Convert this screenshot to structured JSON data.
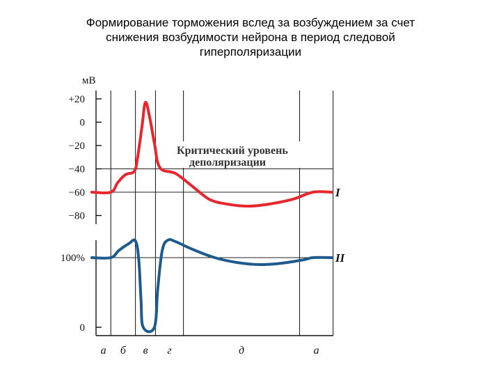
{
  "title_lines": [
    "Формирование торможения  вслед  за возбуждением  за счет",
    "снижения  возбудимости  нейрона в период  следовой",
    "гиперполяризации"
  ],
  "chart_data": [
    {
      "type": "line",
      "title": "",
      "ylabel": "мВ",
      "ylim": [
        -85,
        28
      ],
      "yticks": [
        20,
        0,
        -20,
        -40,
        -60,
        -80
      ],
      "ytick_labels": [
        "+20",
        "0",
        "−20",
        "−40",
        "−60",
        "−80"
      ],
      "annotation": [
        "Критический уровень",
        "деполяризации"
      ],
      "threshold": -40,
      "series": [
        {
          "name": "I",
          "color": "#e8262e",
          "points": [
            [
              0,
              -60
            ],
            [
              1.7,
              -60
            ],
            [
              2.3,
              -52
            ],
            [
              3.0,
              -45
            ],
            [
              3.8,
              -42
            ],
            [
              4.1,
              -30
            ],
            [
              4.5,
              -3
            ],
            [
              4.8,
              17
            ],
            [
              5.2,
              3
            ],
            [
              5.6,
              -18
            ],
            [
              6.1,
              -39
            ],
            [
              7.5,
              -44
            ],
            [
              9.0,
              -55
            ],
            [
              10.5,
              -66
            ],
            [
              12.0,
              -70
            ],
            [
              14.0,
              -72
            ],
            [
              16.0,
              -70
            ],
            [
              18.0,
              -66
            ],
            [
              19.8,
              -60
            ],
            [
              21.5,
              -60
            ]
          ]
        }
      ]
    },
    {
      "type": "line",
      "title": "",
      "ylabel": "",
      "ylim": [
        0,
        130
      ],
      "yticks": [
        100,
        0
      ],
      "ytick_labels": [
        "100%",
        "0"
      ],
      "series": [
        {
          "name": "II",
          "color": "#1e5b8c",
          "points": [
            [
              0,
              100
            ],
            [
              1.7,
              100
            ],
            [
              2.4,
              110
            ],
            [
              3.3,
              120
            ],
            [
              3.9,
              124
            ],
            [
              4.2,
              97
            ],
            [
              4.4,
              40
            ],
            [
              4.6,
              0
            ],
            [
              5.6,
              0
            ],
            [
              5.9,
              55
            ],
            [
              6.3,
              110
            ],
            [
              6.8,
              125
            ],
            [
              7.5,
              123
            ],
            [
              9.0,
              112
            ],
            [
              11.0,
              100
            ],
            [
              13.0,
              93
            ],
            [
              15.0,
              90
            ],
            [
              17.0,
              92
            ],
            [
              19.0,
              97
            ],
            [
              19.8,
              100
            ],
            [
              21.5,
              100
            ]
          ]
        }
      ]
    }
  ],
  "phase_labels": [
    "а",
    "б",
    "в",
    "г",
    "д",
    "а"
  ]
}
